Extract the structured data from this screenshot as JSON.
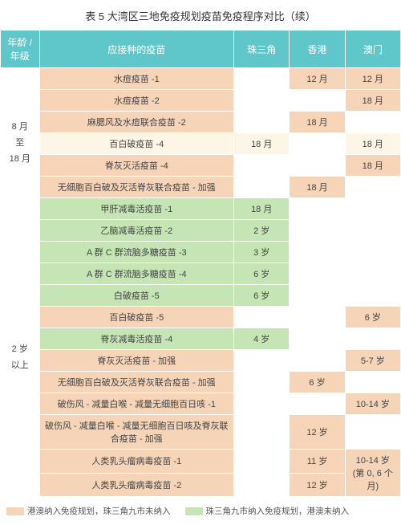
{
  "title": "表 5 大湾区三地免疫规划疫苗免疫程序对比（续）",
  "headers": {
    "age": "年龄 /\n年级",
    "vaccine": "应接种的疫苗",
    "prd": "珠三角",
    "hk": "香港",
    "mo": "澳门"
  },
  "colors": {
    "header_bg": "#5fc6c9",
    "orange": "#f5d4b8",
    "green": "#c5e5b4",
    "cream": "#fdf5e6"
  },
  "groups": [
    {
      "age_label": "8 月\n至\n18 月",
      "rows": [
        {
          "vaccine": "水痘疫苗 -1",
          "prd": "",
          "hk": "12 月",
          "mo": "12 月",
          "c": [
            "orange",
            "white",
            "orange",
            "orange"
          ]
        },
        {
          "vaccine": "水痘疫苗 -2",
          "prd": "",
          "hk": "",
          "mo": "18 月",
          "c": [
            "orange",
            "white",
            "white",
            "orange"
          ]
        },
        {
          "vaccine": "麻腮风及水痘联合疫苗 -2",
          "prd": "",
          "hk": "18 月",
          "mo": "",
          "c": [
            "orange",
            "white",
            "orange",
            "white"
          ]
        },
        {
          "vaccine": "百白破疫苗 -4",
          "prd": "18 月",
          "hk": "",
          "mo": "18 月",
          "c": [
            "cream",
            "cream",
            "white",
            "cream"
          ]
        },
        {
          "vaccine": "脊灰灭活疫苗 -4",
          "prd": "",
          "hk": "",
          "mo": "18 月",
          "c": [
            "orange",
            "white",
            "white",
            "orange"
          ]
        },
        {
          "vaccine": "无细胞百白破及灭活脊灰联合疫苗 - 加强",
          "prd": "",
          "hk": "18 月",
          "mo": "",
          "c": [
            "orange",
            "white",
            "orange",
            "white"
          ]
        },
        {
          "vaccine": "甲肝减毒活疫苗 -1",
          "prd": "18 月",
          "hk": "",
          "mo": "",
          "c": [
            "green",
            "green",
            "white",
            "white"
          ]
        }
      ]
    },
    {
      "age_label": "2 岁\n以上",
      "rows": [
        {
          "vaccine": "乙脑减毒活疫苗 -2",
          "prd": "2 岁",
          "hk": "",
          "mo": "",
          "c": [
            "green",
            "green",
            "white",
            "white"
          ]
        },
        {
          "vaccine": "A 群 C 群流脑多糖疫苗 -3",
          "prd": "3 岁",
          "hk": "",
          "mo": "",
          "c": [
            "green",
            "green",
            "white",
            "white"
          ]
        },
        {
          "vaccine": "A 群 C 群流脑多糖疫苗 -4",
          "prd": "6 岁",
          "hk": "",
          "mo": "",
          "c": [
            "green",
            "green",
            "white",
            "white"
          ]
        },
        {
          "vaccine": "白破疫苗 -5",
          "prd": "6 岁",
          "hk": "",
          "mo": "",
          "c": [
            "green",
            "green",
            "white",
            "white"
          ]
        },
        {
          "vaccine": "百白破疫苗 -5",
          "prd": "",
          "hk": "",
          "mo": "6 岁",
          "c": [
            "orange",
            "white",
            "white",
            "orange"
          ]
        },
        {
          "vaccine": "脊灰减毒活疫苗 -4",
          "prd": "4 岁",
          "hk": "",
          "mo": "",
          "c": [
            "green",
            "green",
            "white",
            "white"
          ]
        },
        {
          "vaccine": "脊灰灭活疫苗 - 加强",
          "prd": "",
          "hk": "",
          "mo": "5-7 岁",
          "c": [
            "orange",
            "white",
            "white",
            "orange"
          ]
        },
        {
          "vaccine": "无细胞百白破及灭活脊灰联合疫苗 - 加强",
          "prd": "",
          "hk": "6 岁",
          "mo": "",
          "c": [
            "orange",
            "white",
            "orange",
            "white"
          ]
        },
        {
          "vaccine": "破伤风 - 减量白喉 - 减量无细胞百日咳 -1",
          "prd": "",
          "hk": "",
          "mo": "10-14 岁",
          "c": [
            "orange",
            "white",
            "white",
            "orange"
          ]
        },
        {
          "vaccine": "破伤风 - 减量白喉 - 减量无细胞百日咳及脊灰联合疫苗 - 加强",
          "prd": "",
          "hk": "12 岁",
          "mo": "",
          "c": [
            "orange",
            "white",
            "orange",
            "white"
          ]
        },
        {
          "vaccine": "人类乳头瘤病毒疫苗 -1",
          "prd": "",
          "hk": "11 岁",
          "mo": "10-14 岁\n(第 0, 6 个月)",
          "mo_rowspan": 2,
          "c": [
            "orange",
            "white",
            "orange",
            "orange"
          ]
        },
        {
          "vaccine": "人类乳头瘤病毒疫苗 -2",
          "prd": "",
          "hk": "12 岁",
          "mo": null,
          "c": [
            "orange",
            "white",
            "orange",
            null
          ]
        }
      ]
    }
  ],
  "legend": [
    {
      "color": "orange",
      "text": "港澳纳入免疫规划，珠三角九市未纳入"
    },
    {
      "color": "green",
      "text": "珠三角九市纳入免疫规划，港澳未纳入"
    }
  ]
}
